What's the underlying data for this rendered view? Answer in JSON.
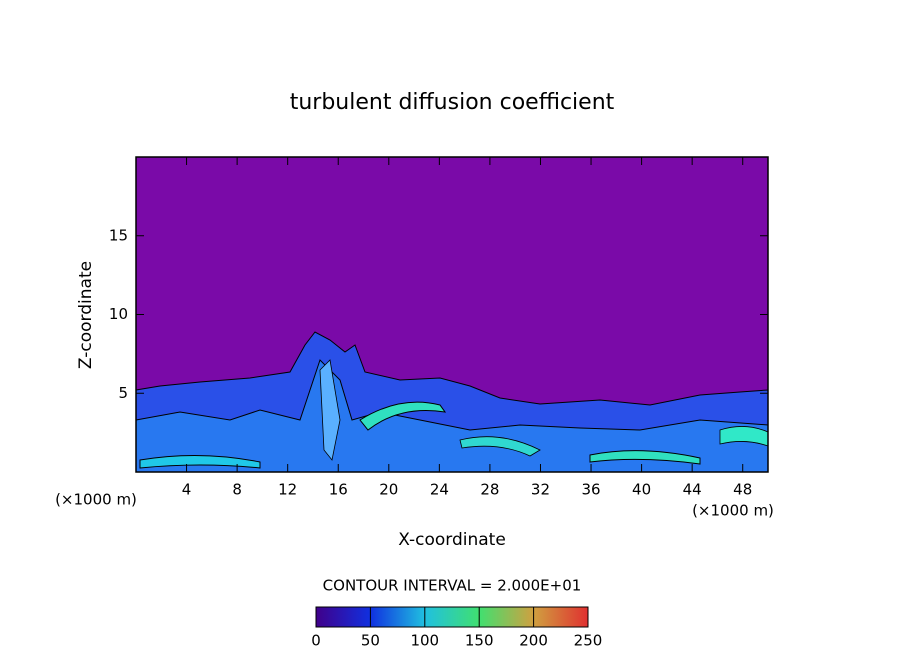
{
  "chart_data": {
    "type": "contour",
    "title": "turbulent diffusion coefficient",
    "x_label": "X-coordinate",
    "y_label": "Z-coordinate",
    "x_unit_label": "(×1000 m)",
    "contour_interval": "CONTOUR INTERVAL = 2.000E+01",
    "xlim": [
      0,
      50
    ],
    "ylim": [
      0,
      20
    ],
    "xticks": [
      4,
      8,
      12,
      16,
      20,
      24,
      28,
      32,
      36,
      40,
      44,
      48
    ],
    "yticks": [
      5,
      10,
      15
    ],
    "colorbar": {
      "lim": [
        0,
        250
      ],
      "ticks": [
        0,
        50,
        100,
        150,
        200,
        250
      ]
    }
  }
}
